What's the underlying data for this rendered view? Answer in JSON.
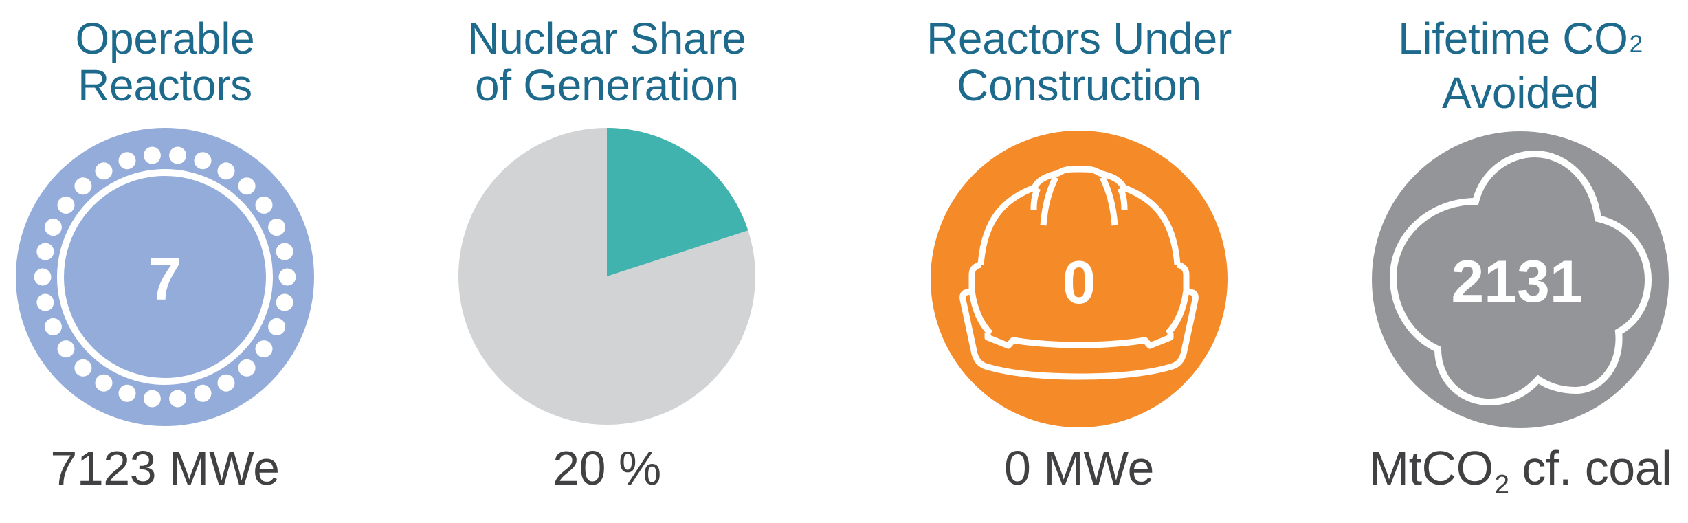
{
  "colors": {
    "title": "#1d6a8c",
    "caption": "#414042",
    "operable_reactors": "#94acd9",
    "nuclear_share": "#40b3ae",
    "other_share": "#d1d3d4",
    "under_construction": "#f58a28",
    "co2_avoided": "#939598"
  },
  "stats": [
    {
      "title_line1": "Operable",
      "title_line2": "Reactors",
      "icon": "reactor-ring-icon",
      "value": "7",
      "caption": "7123 MWe"
    },
    {
      "title_line1": "Nuclear Share",
      "title_line2": "of Generation",
      "icon": "pie-chart",
      "caption": "20 %"
    },
    {
      "title_line1": "Reactors Under",
      "title_line2": "Construction",
      "icon": "hardhat-icon",
      "value": "0",
      "caption": "0 MWe"
    },
    {
      "title_line1_main": "Lifetime CO",
      "title_line1_sub": "2",
      "title_line2": "Avoided",
      "icon": "cloud-icon",
      "value": "2131",
      "caption_main": "MtCO",
      "caption_sub": "2",
      "caption_rest": " cf. coal"
    }
  ],
  "chart_data": {
    "type": "pie",
    "title": "Nuclear Share of Generation",
    "categories": [
      "Nuclear",
      "Other"
    ],
    "values": [
      20,
      80
    ],
    "colors": [
      "#40b3ae",
      "#d1d3d4"
    ],
    "start_angle": "12 o'clock, clockwise",
    "annotation": "20 %"
  }
}
